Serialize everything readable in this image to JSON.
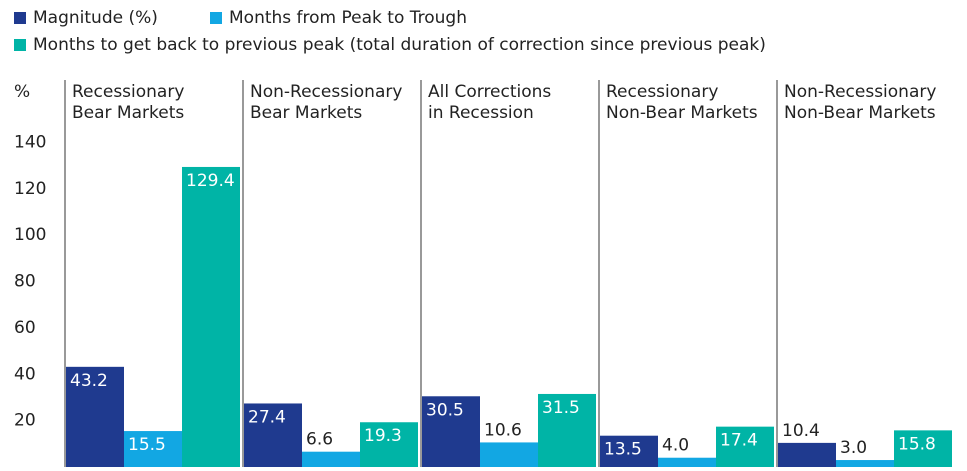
{
  "chart_data": {
    "type": "bar",
    "y_axis_label": "%",
    "categories": [
      [
        "Recessionary",
        "Bear Markets"
      ],
      [
        "Non-Recessionary",
        "Bear Markets"
      ],
      [
        "All Corrections",
        "in Recession"
      ],
      [
        "Recessionary",
        "Non-Bear Markets"
      ],
      [
        "Non-Recessionary",
        "Non-Bear Markets"
      ]
    ],
    "series": [
      {
        "name": "Magnitude (%)",
        "color": "#1f3a8f",
        "values": [
          43.2,
          27.4,
          30.5,
          13.5,
          10.4
        ],
        "value_labels": [
          "43.2",
          "27.4",
          "30.5",
          "13.5",
          "10.4"
        ]
      },
      {
        "name": "Months from Peak to Trough",
        "color": "#12a7e3",
        "values": [
          15.5,
          6.6,
          10.6,
          4.0,
          3.0
        ],
        "value_labels": [
          "15.5",
          "6.6",
          "10.6",
          "4.0",
          "3.0"
        ]
      },
      {
        "name": "Months to get back to previous peak (total duration of correction since previous peak)",
        "color": "#00b4a6",
        "values": [
          129.4,
          19.3,
          31.5,
          17.4,
          15.8
        ],
        "value_labels": [
          "129.4",
          "19.3",
          "31.5",
          "17.4",
          "15.8"
        ]
      }
    ],
    "ylim": [
      0,
      160
    ],
    "yticks": [
      20,
      40,
      60,
      80,
      100,
      120,
      140
    ],
    "grid": false
  }
}
